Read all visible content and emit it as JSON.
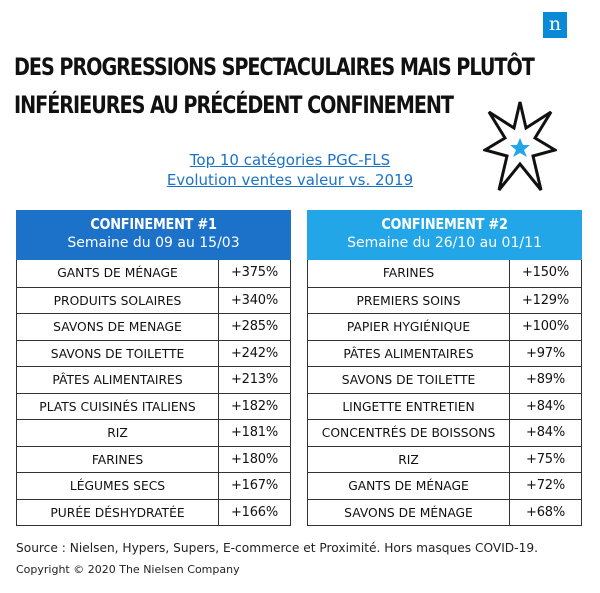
{
  "logo": {
    "letter": "n",
    "color": "#0a8ad6"
  },
  "headline": {
    "line1": "DES PROGRESSIONS SPECTACULAIRES MAIS PLUTÔT",
    "line2": "INFÉRIEURES AU PRÉCÉDENT CONFINEMENT"
  },
  "decoration": {
    "icon": "star-burst-icon",
    "accent": "#22a6e8"
  },
  "chart_data": {
    "type": "table",
    "title": "Top 10 catégories PGC-FLS",
    "subtitle": "Evolution ventes valeur vs. 2019",
    "tables": [
      {
        "heading": "CONFINEMENT #1",
        "period": "Semaine du 09 au 15/03",
        "color": "#1c71c9",
        "rows": [
          {
            "category": "GANTS DE MÉNAGE",
            "value": "+375%"
          },
          {
            "category": "PRODUITS SOLAIRES",
            "value": "+340%"
          },
          {
            "category": "SAVONS DE MENAGE",
            "value": "+285%"
          },
          {
            "category": "SAVONS DE TOILETTE",
            "value": "+242%"
          },
          {
            "category": "PÂTES ALIMENTAIRES",
            "value": "+213%"
          },
          {
            "category": "PLATS CUISINÉS ITALIENS",
            "value": "+182%"
          },
          {
            "category": "RIZ",
            "value": "+181%"
          },
          {
            "category": "FARINES",
            "value": "+180%"
          },
          {
            "category": "LÉGUMES SECS",
            "value": "+167%"
          },
          {
            "category": "PURÉE DÉSHYDRATÉE",
            "value": "+166%"
          }
        ]
      },
      {
        "heading": "CONFINEMENT #2",
        "period": "Semaine du 26/10 au 01/11",
        "color": "#22a6e8",
        "rows": [
          {
            "category": "FARINES",
            "value": "+150%"
          },
          {
            "category": "PREMIERS SOINS",
            "value": "+129%"
          },
          {
            "category": "PAPIER HYGIÉNIQUE",
            "value": "+100%"
          },
          {
            "category": "PÂTES ALIMENTAIRES",
            "value": "+97%"
          },
          {
            "category": "SAVONS DE TOILETTE",
            "value": "+89%"
          },
          {
            "category": "LINGETTE ENTRETIEN",
            "value": "+84%"
          },
          {
            "category": "CONCENTRÉS DE BOISSONS",
            "value": "+84%"
          },
          {
            "category": "RIZ",
            "value": "+75%"
          },
          {
            "category": "GANTS DE MÉNAGE",
            "value": "+72%"
          },
          {
            "category": "SAVONS DE MÉNAGE",
            "value": "+68%"
          }
        ]
      }
    ]
  },
  "footer": {
    "source": "Source : Nielsen, Hypers, Supers, E-commerce et Proximité. Hors masques COVID-19.",
    "copyright": "Copyright © 2020 The Nielsen Company"
  }
}
